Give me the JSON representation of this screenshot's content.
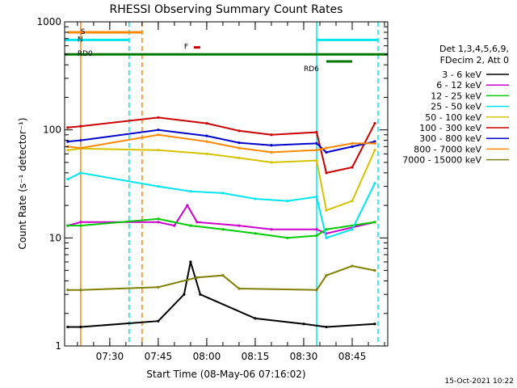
{
  "chart_data": {
    "type": "line",
    "title": "RHESSI Observing Summary Count Rates",
    "xlabel": "Start Time (08-May-06 07:16:02)",
    "ylabel": "Count Rate (s⁻¹ detector⁻¹)",
    "yscale": "log",
    "ylim": [
      1,
      1000
    ],
    "xlim": [
      "07:16:02",
      "08:56:00"
    ],
    "x_ticks": [
      "07:30",
      "07:45",
      "08:00",
      "08:15",
      "08:30",
      "08:45"
    ],
    "y_ticks": [
      "1",
      "10",
      "100",
      "1000"
    ],
    "legend_header": [
      "Det 1,3,4,5,6,9,",
      "FDecim 2, Att 0"
    ],
    "legend_position": "right",
    "timestamp": "15-Oct-2021 10:22",
    "series": [
      {
        "name": "3 - 6 keV",
        "color": "#000000",
        "values": [
          {
            "t": "07:17",
            "y": 1.5
          },
          {
            "t": "07:21",
            "y": 1.5
          },
          {
            "t": "07:45",
            "y": 1.7
          },
          {
            "t": "07:53",
            "y": 3.0
          },
          {
            "t": "07:55",
            "y": 6.0
          },
          {
            "t": "07:58",
            "y": 3.0
          },
          {
            "t": "08:15",
            "y": 1.8
          },
          {
            "t": "08:30",
            "y": 1.6
          },
          {
            "t": "08:37",
            "y": 1.5
          },
          {
            "t": "08:52",
            "y": 1.6
          }
        ]
      },
      {
        "name": "6 - 12 keV",
        "color": "#cc00cc",
        "values": [
          {
            "t": "07:17",
            "y": 13
          },
          {
            "t": "07:21",
            "y": 14
          },
          {
            "t": "07:45",
            "y": 14
          },
          {
            "t": "07:50",
            "y": 13
          },
          {
            "t": "07:54",
            "y": 20
          },
          {
            "t": "07:57",
            "y": 14
          },
          {
            "t": "08:10",
            "y": 13
          },
          {
            "t": "08:20",
            "y": 12
          },
          {
            "t": "08:34",
            "y": 12
          },
          {
            "t": "08:37",
            "y": 11
          },
          {
            "t": "08:52",
            "y": 14
          }
        ]
      },
      {
        "name": "12 - 25 keV",
        "color": "#00cc00",
        "values": [
          {
            "t": "07:17",
            "y": 13
          },
          {
            "t": "07:21",
            "y": 13
          },
          {
            "t": "07:45",
            "y": 15
          },
          {
            "t": "07:55",
            "y": 13
          },
          {
            "t": "08:05",
            "y": 12
          },
          {
            "t": "08:15",
            "y": 11
          },
          {
            "t": "08:25",
            "y": 10
          },
          {
            "t": "08:34",
            "y": 10.5
          },
          {
            "t": "08:37",
            "y": 12
          },
          {
            "t": "08:52",
            "y": 14
          }
        ]
      },
      {
        "name": "25 - 50 keV",
        "color": "#00e5ee",
        "values": [
          {
            "t": "07:17",
            "y": 35
          },
          {
            "t": "07:21",
            "y": 40
          },
          {
            "t": "07:45",
            "y": 30
          },
          {
            "t": "07:55",
            "y": 27
          },
          {
            "t": "08:05",
            "y": 26
          },
          {
            "t": "08:15",
            "y": 23
          },
          {
            "t": "08:25",
            "y": 22
          },
          {
            "t": "08:34",
            "y": 24
          },
          {
            "t": "08:37",
            "y": 10
          },
          {
            "t": "08:45",
            "y": 12
          },
          {
            "t": "08:52",
            "y": 32
          }
        ]
      },
      {
        "name": "50 - 100 keV",
        "color": "#d4c400",
        "values": [
          {
            "t": "07:17",
            "y": 65
          },
          {
            "t": "07:21",
            "y": 67
          },
          {
            "t": "07:45",
            "y": 65
          },
          {
            "t": "08:00",
            "y": 60
          },
          {
            "t": "08:10",
            "y": 55
          },
          {
            "t": "08:20",
            "y": 50
          },
          {
            "t": "08:34",
            "y": 52
          },
          {
            "t": "08:37",
            "y": 18
          },
          {
            "t": "08:45",
            "y": 22
          },
          {
            "t": "08:52",
            "y": 65
          }
        ]
      },
      {
        "name": "100 - 300 keV",
        "color": "#cc0000",
        "values": [
          {
            "t": "07:17",
            "y": 105
          },
          {
            "t": "07:21",
            "y": 108
          },
          {
            "t": "07:45",
            "y": 130
          },
          {
            "t": "08:00",
            "y": 115
          },
          {
            "t": "08:10",
            "y": 98
          },
          {
            "t": "08:20",
            "y": 90
          },
          {
            "t": "08:34",
            "y": 95
          },
          {
            "t": "08:37",
            "y": 40
          },
          {
            "t": "08:45",
            "y": 45
          },
          {
            "t": "08:52",
            "y": 115
          }
        ]
      },
      {
        "name": "300 - 800 keV",
        "color": "#0000cc",
        "values": [
          {
            "t": "07:17",
            "y": 78
          },
          {
            "t": "07:21",
            "y": 80
          },
          {
            "t": "07:45",
            "y": 100
          },
          {
            "t": "08:00",
            "y": 88
          },
          {
            "t": "08:10",
            "y": 76
          },
          {
            "t": "08:20",
            "y": 72
          },
          {
            "t": "08:34",
            "y": 75
          },
          {
            "t": "08:37",
            "y": 62
          },
          {
            "t": "08:45",
            "y": 70
          },
          {
            "t": "08:52",
            "y": 78
          }
        ]
      },
      {
        "name": "800 - 7000 keV",
        "color": "#ff8800",
        "values": [
          {
            "t": "07:17",
            "y": 70
          },
          {
            "t": "07:21",
            "y": 68
          },
          {
            "t": "07:45",
            "y": 90
          },
          {
            "t": "08:00",
            "y": 78
          },
          {
            "t": "08:10",
            "y": 68
          },
          {
            "t": "08:20",
            "y": 62
          },
          {
            "t": "08:34",
            "y": 65
          },
          {
            "t": "08:37",
            "y": 68
          },
          {
            "t": "08:45",
            "y": 75
          },
          {
            "t": "08:52",
            "y": 75
          }
        ]
      },
      {
        "name": "7000 - 15000 keV",
        "color": "#808000",
        "values": [
          {
            "t": "07:17",
            "y": 3.3
          },
          {
            "t": "07:21",
            "y": 3.3
          },
          {
            "t": "07:45",
            "y": 3.5
          },
          {
            "t": "07:57",
            "y": 4.3
          },
          {
            "t": "08:05",
            "y": 4.5
          },
          {
            "t": "08:10",
            "y": 3.4
          },
          {
            "t": "08:34",
            "y": 3.3
          },
          {
            "t": "08:37",
            "y": 4.5
          },
          {
            "t": "08:45",
            "y": 5.5
          },
          {
            "t": "08:52",
            "y": 5.0
          }
        ]
      }
    ],
    "flags": [
      {
        "label": "S",
        "color": "#ff8800",
        "start": "07:17",
        "end": "07:40",
        "level": 800
      },
      {
        "label": "N",
        "color": "#00e5ee",
        "start": "07:16",
        "end": "07:36",
        "level": 680
      },
      {
        "label": "F",
        "color": "#cc0000",
        "start": "07:56",
        "end": "07:58",
        "level": 580
      },
      {
        "label": "RD0",
        "color": "#007700",
        "start": "07:16",
        "end": "08:56",
        "level": 500
      },
      {
        "label": "RD6",
        "color": "#007700",
        "start": "08:37",
        "end": "08:45",
        "level": 430
      },
      {
        "label": "",
        "color": "#00e5ee",
        "start": "08:34",
        "end": "08:53",
        "level": 680
      }
    ],
    "vlines": [
      {
        "t": "07:21",
        "color": "#ff8800",
        "style": "solid"
      },
      {
        "t": "07:36",
        "color": "#00e5ee",
        "style": "dashed"
      },
      {
        "t": "07:40",
        "color": "#ff8800",
        "style": "dashed"
      },
      {
        "t": "08:34",
        "color": "#00e5ee",
        "style": "solid"
      },
      {
        "t": "08:53",
        "color": "#00e5ee",
        "style": "dashed"
      }
    ]
  }
}
